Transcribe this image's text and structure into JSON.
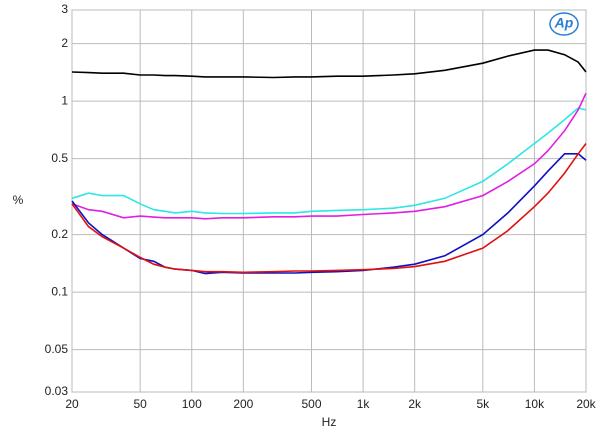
{
  "chart_data": {
    "type": "line",
    "logo": "Ap",
    "xlabel": "Hz",
    "ylabel": "%",
    "xscale": "log",
    "yscale": "log",
    "grid": true,
    "xlim": [
      20,
      20000
    ],
    "ylim": [
      0.03,
      3
    ],
    "xticks": [
      20,
      50,
      100,
      200,
      500,
      {
        "value": 1000,
        "label": "1k"
      },
      {
        "value": 2000,
        "label": "2k"
      },
      {
        "value": 5000,
        "label": "5k"
      },
      {
        "value": 10000,
        "label": "10k"
      },
      {
        "value": 20000,
        "label": "20k"
      }
    ],
    "yticks": [
      0.03,
      0.05,
      0.1,
      0.2,
      0.5,
      1,
      2,
      3
    ],
    "x": [
      20,
      25,
      30,
      40,
      50,
      60,
      70,
      80,
      100,
      120,
      150,
      200,
      300,
      400,
      500,
      700,
      1000,
      1500,
      2000,
      3000,
      5000,
      7000,
      10000,
      12000,
      15000,
      18000,
      20000
    ],
    "series": [
      {
        "color": "#000000",
        "values": [
          1.42,
          1.41,
          1.4,
          1.4,
          1.37,
          1.37,
          1.36,
          1.36,
          1.35,
          1.34,
          1.34,
          1.34,
          1.33,
          1.34,
          1.34,
          1.35,
          1.35,
          1.37,
          1.39,
          1.45,
          1.58,
          1.72,
          1.85,
          1.85,
          1.75,
          1.6,
          1.42
        ]
      },
      {
        "color": "#2ee6e6",
        "values": [
          0.31,
          0.33,
          0.32,
          0.32,
          0.29,
          0.27,
          0.265,
          0.26,
          0.265,
          0.26,
          0.258,
          0.258,
          0.26,
          0.26,
          0.265,
          0.268,
          0.27,
          0.275,
          0.285,
          0.31,
          0.38,
          0.47,
          0.6,
          0.68,
          0.8,
          0.92,
          0.9
        ]
      },
      {
        "color": "#e020e0",
        "values": [
          0.29,
          0.27,
          0.265,
          0.245,
          0.25,
          0.247,
          0.245,
          0.245,
          0.245,
          0.242,
          0.245,
          0.245,
          0.248,
          0.248,
          0.25,
          0.25,
          0.255,
          0.26,
          0.265,
          0.28,
          0.32,
          0.38,
          0.47,
          0.55,
          0.7,
          0.9,
          1.1
        ]
      },
      {
        "color": "#1010c0",
        "values": [
          0.3,
          0.23,
          0.2,
          0.17,
          0.15,
          0.145,
          0.135,
          0.132,
          0.13,
          0.125,
          0.127,
          0.126,
          0.126,
          0.126,
          0.127,
          0.128,
          0.13,
          0.135,
          0.14,
          0.155,
          0.2,
          0.26,
          0.36,
          0.43,
          0.53,
          0.53,
          0.49
        ]
      },
      {
        "color": "#e01010",
        "values": [
          0.29,
          0.22,
          0.195,
          0.17,
          0.152,
          0.14,
          0.135,
          0.132,
          0.13,
          0.128,
          0.128,
          0.127,
          0.128,
          0.129,
          0.129,
          0.13,
          0.131,
          0.133,
          0.136,
          0.145,
          0.17,
          0.21,
          0.28,
          0.33,
          0.42,
          0.53,
          0.6
        ]
      }
    ]
  }
}
